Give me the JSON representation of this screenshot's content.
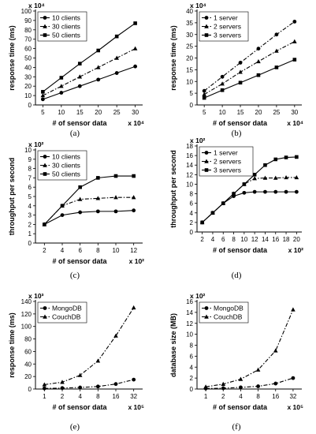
{
  "chart_data": [
    {
      "type": "line",
      "caption": "(a)",
      "ylabel": "response time (ms)",
      "xlabel": "# of sensor data",
      "xmult": "x 10⁴",
      "ymult": "x 10⁴",
      "x": [
        5,
        10,
        15,
        20,
        25,
        30
      ],
      "xlim": [
        3,
        32
      ],
      "ylim": [
        0,
        100
      ],
      "yticks": [
        0,
        10,
        20,
        30,
        40,
        50,
        60,
        70,
        80,
        90,
        100
      ],
      "legend_position": "top-left",
      "series": [
        {
          "name": "10 clients",
          "marker": "circle",
          "dash": "solid",
          "values": [
            6,
            13,
            20,
            27,
            34,
            41
          ]
        },
        {
          "name": "30 clients",
          "marker": "triangle",
          "dash": "dashdot",
          "values": [
            10,
            20,
            30,
            40,
            50,
            60
          ]
        },
        {
          "name": "50 clients",
          "marker": "square",
          "dash": "solid",
          "values": [
            14,
            29,
            44,
            58,
            73,
            87
          ]
        }
      ]
    },
    {
      "type": "line",
      "caption": "(b)",
      "ylabel": "response time (ms)",
      "xlabel": "# of sensor data",
      "xmult": "x 10⁴",
      "ymult": "x 10⁴",
      "x": [
        5,
        10,
        15,
        20,
        25,
        30
      ],
      "xlim": [
        3,
        32
      ],
      "ylim": [
        0,
        40
      ],
      "yticks": [
        0,
        5,
        10,
        15,
        20,
        25,
        30,
        35,
        40
      ],
      "legend_position": "top-left",
      "series": [
        {
          "name": "1 server",
          "marker": "circle",
          "dash": "dashdot",
          "values": [
            6,
            12,
            18,
            24,
            30,
            35.5
          ]
        },
        {
          "name": "2 servers",
          "marker": "triangle",
          "dash": "dashdot",
          "values": [
            4.5,
            9,
            14,
            18.5,
            23,
            27
          ]
        },
        {
          "name": "3 servers",
          "marker": "square",
          "dash": "solid",
          "values": [
            3,
            6.3,
            9.5,
            12.7,
            16,
            19.3
          ]
        }
      ]
    },
    {
      "type": "line",
      "caption": "(c)",
      "ylabel": "throughput per second",
      "xlabel": "# of sensor data",
      "xmult": "x 10²",
      "ymult": "x 10²",
      "x": [
        2,
        4,
        6,
        8,
        10,
        12
      ],
      "xlim": [
        1,
        13
      ],
      "ylim": [
        0,
        10
      ],
      "yticks": [
        0,
        1,
        2,
        3,
        4,
        5,
        6,
        7,
        8,
        9,
        10
      ],
      "legend_position": "top-left",
      "series": [
        {
          "name": "10 clients",
          "marker": "circle",
          "dash": "solid",
          "values": [
            2,
            3,
            3.3,
            3.4,
            3.4,
            3.5
          ]
        },
        {
          "name": "30 clients",
          "marker": "triangle",
          "dash": "dashdot",
          "values": [
            2,
            4,
            4.7,
            4.8,
            4.9,
            4.9
          ]
        },
        {
          "name": "50 clients",
          "marker": "square",
          "dash": "solid",
          "values": [
            2,
            4,
            6,
            7,
            7.2,
            7.2
          ]
        }
      ]
    },
    {
      "type": "line",
      "caption": "(d)",
      "ylabel": "throughput per second",
      "xlabel": "# of sensor data",
      "xmult": "x 10²",
      "ymult": "x 10²",
      "x": [
        2,
        4,
        6,
        8,
        10,
        12,
        14,
        16,
        18,
        20
      ],
      "xlim": [
        1,
        21
      ],
      "ylim": [
        0,
        18
      ],
      "yticks": [
        0,
        2,
        4,
        6,
        8,
        10,
        12,
        14,
        16,
        18
      ],
      "legend_position": "top-left",
      "series": [
        {
          "name": "1 server",
          "marker": "circle",
          "dash": "solid",
          "values": [
            2,
            4,
            6,
            7.5,
            8.2,
            8.4,
            8.4,
            8.4,
            8.4,
            8.4
          ]
        },
        {
          "name": "2 servers",
          "marker": "triangle",
          "dash": "dashdot",
          "values": [
            2,
            4,
            6,
            8,
            10,
            11.2,
            11.3,
            11.3,
            11.4,
            11.4
          ]
        },
        {
          "name": "3 servers",
          "marker": "square",
          "dash": "solid",
          "values": [
            2,
            4,
            6,
            8,
            10,
            12,
            14,
            15.2,
            15.6,
            15.7
          ]
        }
      ]
    },
    {
      "type": "line",
      "caption": "(e)",
      "ylabel": "response time (ms)",
      "xlabel": "# of sensor data",
      "xmult": "x 10⁵",
      "ymult": "x 10³",
      "x": [
        1,
        2,
        4,
        8,
        16,
        32
      ],
      "x_scale": "log2",
      "ylim": [
        0,
        140
      ],
      "yticks": [
        0,
        20,
        40,
        60,
        80,
        100,
        120,
        140
      ],
      "legend_position": "top-left",
      "series": [
        {
          "name": "MongoDB",
          "marker": "circle",
          "dash": "dashdot",
          "values": [
            1,
            1.5,
            2.5,
            4,
            8,
            15
          ]
        },
        {
          "name": "CouchDB",
          "marker": "triangle",
          "dash": "dashdot",
          "values": [
            7,
            11,
            22,
            45,
            85,
            130
          ]
        }
      ]
    },
    {
      "type": "line",
      "caption": "(f)",
      "ylabel": "database size (MB)",
      "xlabel": "# of sensor data",
      "xmult": "x 10⁵",
      "ymult": "x 10²",
      "x": [
        1,
        2,
        4,
        8,
        16,
        32
      ],
      "x_scale": "log2",
      "ylim": [
        0,
        16
      ],
      "yticks": [
        0,
        2,
        4,
        6,
        8,
        10,
        12,
        14,
        16
      ],
      "legend_position": "top-left",
      "series": [
        {
          "name": "MongoDB",
          "marker": "circle",
          "dash": "dashdot",
          "values": [
            0.1,
            0.15,
            0.3,
            0.5,
            1,
            2
          ]
        },
        {
          "name": "CouchDB",
          "marker": "triangle",
          "dash": "dashdot",
          "values": [
            0.4,
            0.9,
            1.8,
            3.5,
            7,
            14.5
          ]
        }
      ]
    }
  ]
}
